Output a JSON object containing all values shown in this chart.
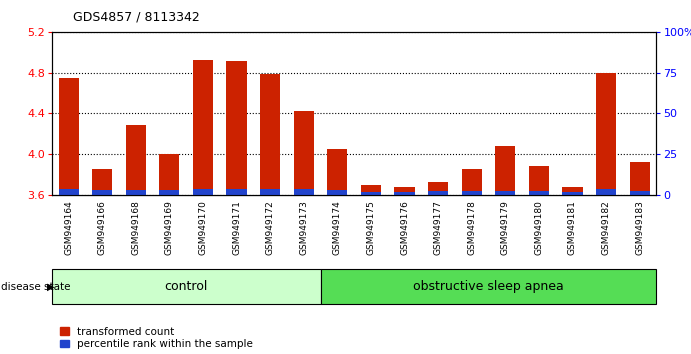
{
  "title": "GDS4857 / 8113342",
  "samples": [
    "GSM949164",
    "GSM949166",
    "GSM949168",
    "GSM949169",
    "GSM949170",
    "GSM949171",
    "GSM949172",
    "GSM949173",
    "GSM949174",
    "GSM949175",
    "GSM949176",
    "GSM949177",
    "GSM949178",
    "GSM949179",
    "GSM949180",
    "GSM949181",
    "GSM949182",
    "GSM949183"
  ],
  "red_values": [
    4.75,
    3.85,
    4.28,
    4.0,
    4.92,
    4.91,
    4.79,
    4.42,
    4.05,
    3.7,
    3.68,
    3.72,
    3.85,
    4.08,
    3.88,
    3.68,
    4.8,
    3.92
  ],
  "blue_heights": [
    0.055,
    0.045,
    0.05,
    0.044,
    0.058,
    0.056,
    0.055,
    0.052,
    0.048,
    0.03,
    0.028,
    0.033,
    0.038,
    0.04,
    0.035,
    0.026,
    0.06,
    0.036
  ],
  "ymin": 3.6,
  "ymax": 5.2,
  "yticks": [
    3.6,
    4.0,
    4.4,
    4.8,
    5.2
  ],
  "right_yticks": [
    0,
    25,
    50,
    75,
    100
  ],
  "bar_color_red": "#cc2200",
  "bar_color_blue": "#2244cc",
  "control_count": 8,
  "control_label": "control",
  "disease_label": "obstructive sleep apnea",
  "legend_red": "transformed count",
  "legend_blue": "percentile rank within the sample",
  "bar_width": 0.6,
  "background_color": "#ffffff",
  "tick_area_bg": "#d8d8d8",
  "control_bg": "#ccffcc",
  "disease_bg": "#55dd55"
}
